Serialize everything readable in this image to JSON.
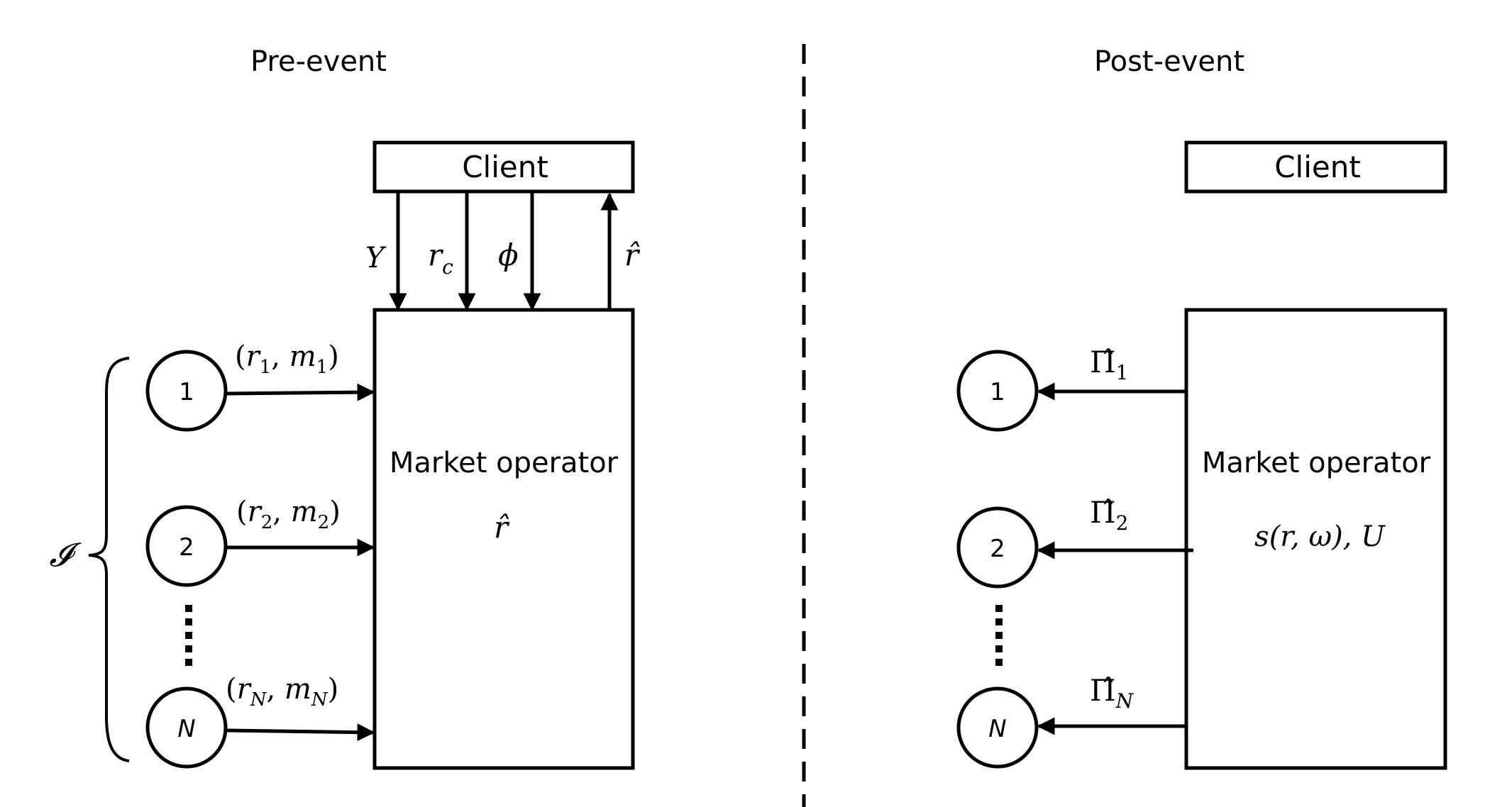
{
  "pre": {
    "heading": "Pre-event",
    "client_label": "Client",
    "client_arrows": [
      {
        "base": "Y",
        "sub": ""
      },
      {
        "base": "r",
        "sub": "c"
      },
      {
        "base": "ϕ",
        "sub": ""
      }
    ],
    "return_arrow": {
      "base": "r̂"
    },
    "operator_title": "Market operator",
    "operator_value": "r̂",
    "set_label": "𝓘",
    "nodes": [
      {
        "label": "1",
        "msg_r": "r",
        "msg_r_sub": "1",
        "msg_m": "m",
        "msg_m_sub": "1"
      },
      {
        "label": "2",
        "msg_r": "r",
        "msg_r_sub": "2",
        "msg_m": "m",
        "msg_m_sub": "2"
      },
      {
        "label": "N",
        "msg_r": "r",
        "msg_r_sub": "N",
        "msg_m": "m",
        "msg_m_sub": "N"
      }
    ]
  },
  "post": {
    "heading": "Post-event",
    "client_label": "Client",
    "operator_title": "Market operator",
    "operator_value": "s(r, ω), U",
    "nodes": [
      {
        "label": "1",
        "payoff": "Π̂",
        "payoff_sub": "1"
      },
      {
        "label": "2",
        "payoff": "Π̂",
        "payoff_sub": "2"
      },
      {
        "label": "N",
        "payoff": "Π̂",
        "payoff_sub": "N"
      }
    ]
  }
}
